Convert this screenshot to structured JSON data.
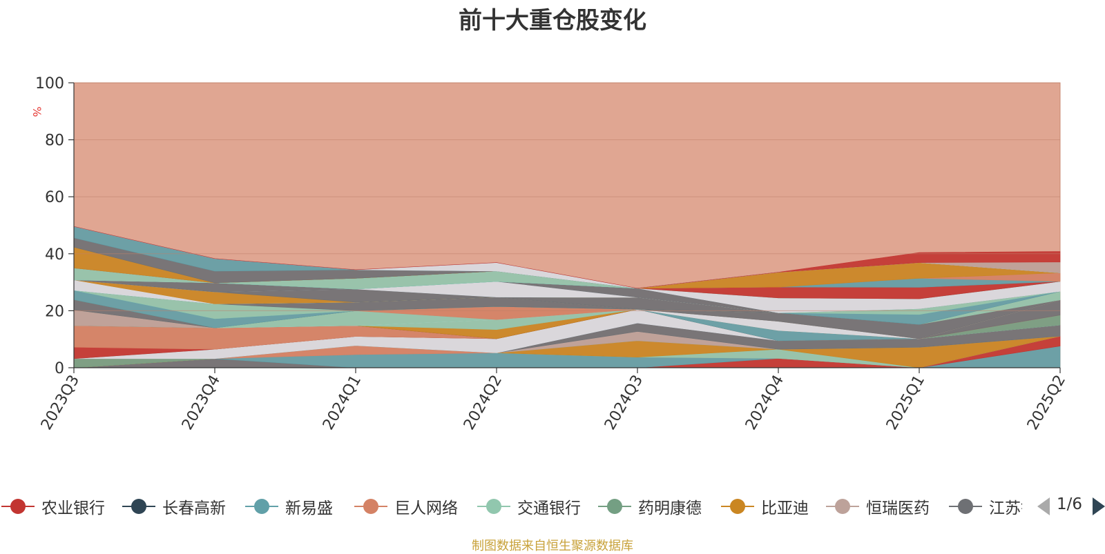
{
  "title": "前十大重仓股变化",
  "source_note": "制图数据来自恒生聚源数据库",
  "pager": {
    "text": "1/6"
  },
  "legend": [
    {
      "label": "农业银行",
      "color": "#c23531"
    },
    {
      "label": "长春高新",
      "color": "#2f4554"
    },
    {
      "label": "新易盛",
      "color": "#61a0a8"
    },
    {
      "label": "巨人网络",
      "color": "#d48265"
    },
    {
      "label": "交通银行",
      "color": "#91c7ae"
    },
    {
      "label": "药明康德",
      "color": "#749f83"
    },
    {
      "label": "比亚迪",
      "color": "#ca8622"
    },
    {
      "label": "恒瑞医药",
      "color": "#bda29a"
    },
    {
      "label": "江苏银行",
      "color": "#6e7074"
    }
  ],
  "chart_data": {
    "type": "area",
    "stacked": true,
    "title": "前十大重仓股变化",
    "ylabel": "%",
    "ylim": [
      0,
      100
    ],
    "yticks": [
      0,
      20,
      40,
      60,
      80,
      100
    ],
    "grid": true,
    "categories": [
      "2023Q3",
      "2023Q4",
      "2024Q1",
      "2024Q2",
      "2024Q3",
      "2024Q4",
      "2025Q1",
      "2025Q2"
    ],
    "series": [
      {
        "color": "#61a0a8",
        "values": [
          0,
          0,
          0,
          0,
          0,
          0,
          0,
          7.6
        ]
      },
      {
        "color": "#c23531",
        "values": [
          0,
          0,
          0,
          0,
          0,
          3.3,
          0,
          3.5
        ]
      },
      {
        "color": "#6e7074",
        "values": [
          0,
          3.2,
          0,
          0,
          0,
          0,
          0,
          0
        ]
      },
      {
        "color": "#61a0a8",
        "values": [
          0,
          0,
          4.6,
          5.2,
          3.7,
          0,
          0,
          0
        ]
      },
      {
        "color": "#d48265",
        "values": [
          0,
          0,
          3.2,
          0,
          0,
          0,
          0,
          0
        ]
      },
      {
        "color": "#91c7ae",
        "values": [
          0,
          0,
          0,
          0,
          0,
          3.2,
          0,
          0
        ]
      },
      {
        "color": "#ca8622",
        "values": [
          0,
          0,
          0,
          0,
          5.8,
          0,
          7.2,
          0
        ]
      },
      {
        "color": "#749f83",
        "values": [
          3.2,
          0,
          0,
          0,
          0,
          0,
          0,
          0
        ]
      },
      {
        "color": "#bda29a",
        "values": [
          0,
          0,
          0,
          0,
          3.2,
          0,
          0,
          0
        ]
      },
      {
        "color": "#6e7074",
        "values": [
          0,
          0,
          0,
          0,
          3.0,
          3.0,
          3.0,
          3.9
        ]
      },
      {
        "color": "#d9dde3",
        "values": [
          0,
          3.3,
          3.2,
          5.0,
          4.8,
          0,
          0,
          0
        ]
      },
      {
        "color": "#749f83",
        "values": [
          0,
          0,
          0,
          0,
          0,
          0,
          0,
          3.5
        ]
      },
      {
        "color": "#c23531",
        "values": [
          4.0,
          0,
          0,
          0,
          0,
          0,
          0,
          0
        ]
      },
      {
        "color": "#d48265",
        "values": [
          7.6,
          7.5,
          3.8,
          0,
          0,
          0,
          0,
          0
        ]
      },
      {
        "color": "#6e7074",
        "values": [
          0,
          0,
          0,
          0,
          0,
          0,
          0,
          5.3
        ]
      },
      {
        "color": "#61a0a8",
        "values": [
          0,
          0,
          0,
          0,
          0,
          3.6,
          0,
          0
        ]
      },
      {
        "color": "#c23531",
        "values": [
          0,
          0,
          0,
          0,
          0,
          0,
          0,
          0
        ]
      },
      {
        "color": "#ca8622",
        "values": [
          0,
          0,
          0,
          3.2,
          0,
          0,
          0,
          0
        ]
      },
      {
        "color": "#91c7ae",
        "values": [
          0,
          0,
          0,
          3.5,
          0,
          0,
          0,
          0
        ]
      },
      {
        "color": "#bda29a",
        "values": [
          5.5,
          0,
          0,
          0,
          0,
          0,
          0,
          0
        ]
      },
      {
        "color": "#d9dde3",
        "values": [
          0,
          0,
          0,
          0,
          0,
          3.2,
          0,
          0
        ]
      },
      {
        "color": "#91c7ae",
        "values": [
          0,
          0,
          5.2,
          0,
          0,
          0,
          0,
          0
        ]
      },
      {
        "color": "#d48265",
        "values": [
          0,
          0,
          0,
          4.6,
          0,
          0,
          0,
          0
        ]
      },
      {
        "color": "#6e7074",
        "values": [
          3.6,
          0,
          0,
          0,
          0,
          3.0,
          5.0,
          0
        ]
      },
      {
        "color": "#749f83",
        "values": [
          0,
          0,
          0,
          0,
          0,
          0,
          0,
          0
        ]
      },
      {
        "color": "#61a0a8",
        "values": [
          3.3,
          3.2,
          0,
          0,
          0,
          0,
          0,
          0
        ]
      },
      {
        "color": "#91c7ae",
        "values": [
          0,
          5.2,
          0,
          0,
          0,
          0,
          0,
          0
        ]
      },
      {
        "color": "#6e7074",
        "values": [
          0,
          0,
          3.0,
          3.3,
          0,
          0,
          0,
          0
        ]
      },
      {
        "color": "#c23531",
        "values": [
          0,
          0,
          0,
          0,
          0,
          0,
          0,
          0
        ]
      },
      {
        "color": "#91c7ae",
        "values": [
          0,
          0,
          0,
          0,
          0,
          0,
          0,
          3.0
        ]
      },
      {
        "color": "#6e7074",
        "values": [
          0,
          0,
          0,
          0,
          4.2,
          0,
          0,
          0
        ]
      },
      {
        "color": "#61a0a8",
        "values": [
          0,
          0,
          0,
          0,
          0,
          0,
          3.5,
          0
        ]
      },
      {
        "color": "#91c7ae",
        "values": [
          0,
          0,
          0,
          0,
          0,
          0,
          2.0,
          0
        ]
      },
      {
        "color": "#d9dde3",
        "values": [
          3.6,
          0,
          0,
          0,
          0,
          0,
          0,
          0
        ]
      },
      {
        "color": "#ca8622",
        "values": [
          0,
          4.2,
          0,
          0,
          0,
          0,
          0,
          0
        ]
      },
      {
        "color": "#6e7074",
        "values": [
          0,
          0,
          4.6,
          0,
          0,
          0,
          0,
          0
        ]
      },
      {
        "color": "#d9dde3",
        "values": [
          0,
          0,
          0,
          5.5,
          0,
          0,
          0,
          0
        ]
      },
      {
        "color": "#6e7074",
        "values": [
          0,
          3.2,
          0,
          0,
          3.2,
          0,
          0,
          0
        ]
      },
      {
        "color": "#d9dde3",
        "values": [
          0,
          0,
          0,
          0,
          0,
          5.2,
          3.5,
          3.5
        ]
      },
      {
        "color": "#91c7ae",
        "values": [
          4.2,
          0,
          0,
          0,
          0,
          0,
          0,
          0
        ]
      },
      {
        "color": "#61a0a8",
        "values": [
          0,
          0,
          0,
          0,
          0,
          0,
          0,
          0
        ]
      },
      {
        "color": "#91c7ae",
        "values": [
          0,
          0,
          3.8,
          3.6,
          0,
          0,
          0,
          0
        ]
      },
      {
        "color": "#c23531",
        "values": [
          0,
          0,
          0,
          0,
          0,
          3.8,
          4.0,
          0
        ]
      },
      {
        "color": "#61a0a8",
        "values": [
          0,
          0,
          0,
          0,
          0,
          0,
          3.2,
          0
        ]
      },
      {
        "color": "#d48265",
        "values": [
          0,
          0,
          0,
          0,
          0,
          0,
          0,
          3.0
        ]
      },
      {
        "color": "#ca8622",
        "values": [
          7.3,
          0,
          0,
          0,
          0,
          5.2,
          5.5,
          0
        ]
      },
      {
        "color": "#6e7074",
        "values": [
          3.3,
          4.1,
          3.0,
          0,
          0,
          0,
          0,
          0
        ]
      },
      {
        "color": "#61a0a8",
        "values": [
          4.0,
          4.4,
          0,
          0,
          0,
          0,
          0,
          0
        ]
      },
      {
        "color": "#d9dde3",
        "values": [
          0,
          0,
          0,
          3.0,
          0,
          0,
          0,
          0
        ]
      },
      {
        "color": "#bda29a",
        "values": [
          0,
          0,
          0,
          0,
          0,
          0,
          0,
          3.8
        ]
      },
      {
        "color": "#c23531",
        "values": [
          0,
          0,
          0,
          0,
          0,
          0,
          3.5,
          3.7
        ]
      }
    ],
    "remainder": {
      "color": "#e0a692"
    }
  }
}
